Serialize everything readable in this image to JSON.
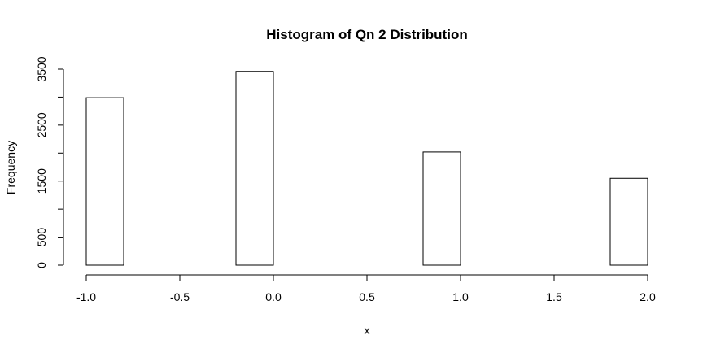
{
  "chart_data": {
    "type": "bar",
    "title": "Histogram of Qn 2 Distribution",
    "xlabel": "x",
    "ylabel": "Frequency",
    "xlim": [
      -1.0,
      2.0
    ],
    "ylim": [
      0,
      3500
    ],
    "x_ticks": [
      "-1.0",
      "-0.5",
      "0.0",
      "0.5",
      "1.0",
      "1.5",
      "2.0"
    ],
    "y_ticks": [
      "0",
      "500",
      "1500",
      "2500",
      "3500"
    ],
    "bins": [
      {
        "x0": -1.0,
        "x1": -0.8,
        "count": 2990
      },
      {
        "x0": -0.8,
        "x1": -0.6,
        "count": 0
      },
      {
        "x0": -0.6,
        "x1": -0.4,
        "count": 0
      },
      {
        "x0": -0.4,
        "x1": -0.2,
        "count": 0
      },
      {
        "x0": -0.2,
        "x1": 0.0,
        "count": 3460
      },
      {
        "x0": 0.0,
        "x1": 0.2,
        "count": 0
      },
      {
        "x0": 0.2,
        "x1": 0.4,
        "count": 0
      },
      {
        "x0": 0.4,
        "x1": 0.6,
        "count": 0
      },
      {
        "x0": 0.6,
        "x1": 0.8,
        "count": 0
      },
      {
        "x0": 0.8,
        "x1": 1.0,
        "count": 2020
      },
      {
        "x0": 1.0,
        "x1": 1.2,
        "count": 0
      },
      {
        "x0": 1.2,
        "x1": 1.4,
        "count": 0
      },
      {
        "x0": 1.4,
        "x1": 1.6,
        "count": 0
      },
      {
        "x0": 1.6,
        "x1": 1.8,
        "count": 0
      },
      {
        "x0": 1.8,
        "x1": 2.0,
        "count": 1550
      }
    ],
    "grid": false,
    "legend": "none"
  }
}
